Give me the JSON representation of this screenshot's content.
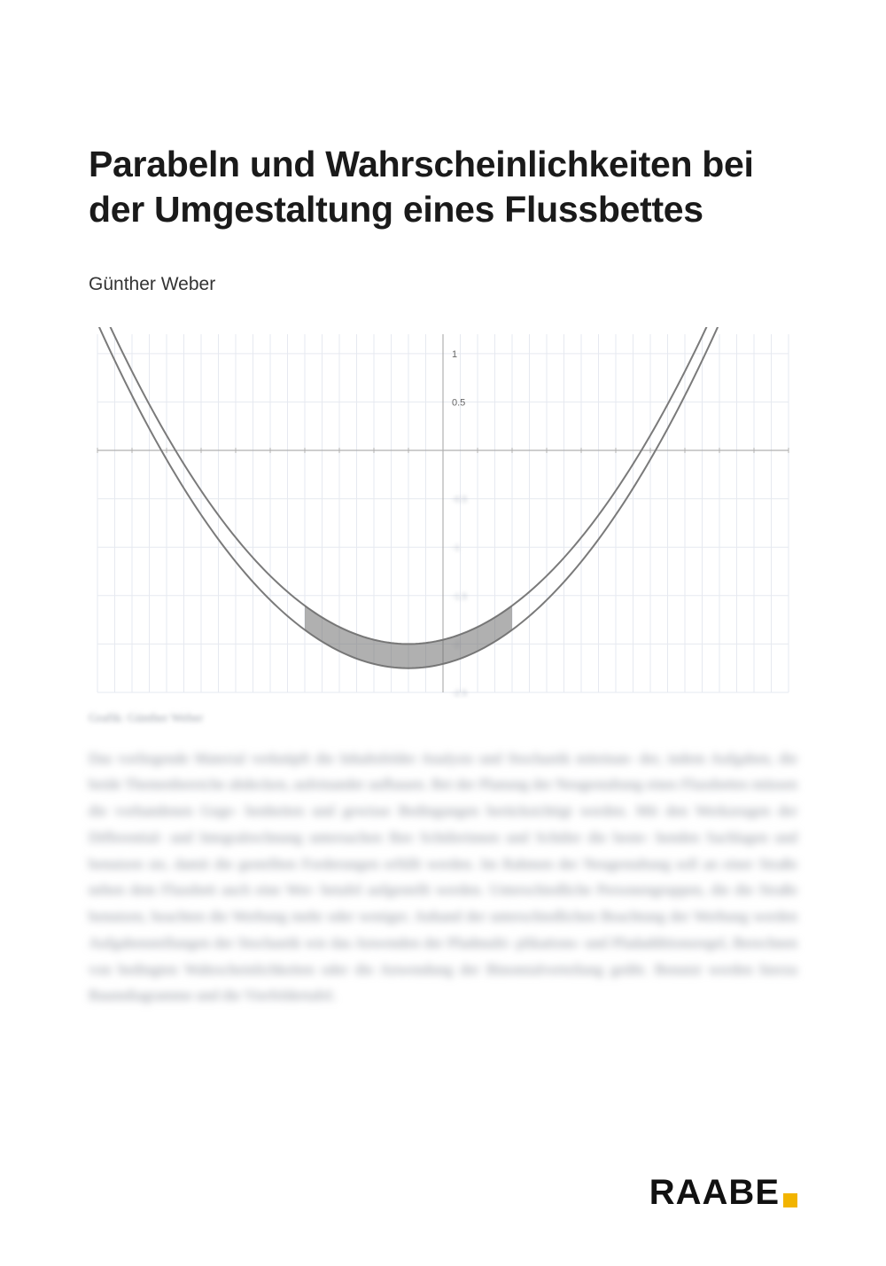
{
  "title": "Parabeln und Wahrscheinlichkeiten bei der Umgestaltung eines Flussbettes",
  "author": "Günther Weber",
  "credit": "Grafik: Günther Weber",
  "body_blur": "Das vorliegende Material verknüpft die Inhaltsfelder Analysis und Stochastik miteinan- der, indem Aufgaben, die beide Themenbereiche abdecken, aufeinander aufbauen.\nBei der Planung der Neugestaltung eines Flussbettes müssen die vorhandenen Gege- benheiten und gewisse Bedingungen berücksichtigt werden. Mit den Werkzeugen der Differential- und Integralrechnung untersuchen Ihre Schülerinnen und Schüler die beste- henden Sachlagen und benutzen sie, damit die gestellten Forderungen erfüllt werden.\nIm Rahmen der Neugestaltung soll an einer Straße neben dem Flussbett auch eine Wer- betafel aufgestellt werden. Unterschiedliche Personengruppen, die die Straße benutzen, beachten die Werbung mehr oder weniger. Anhand der unterschiedlichen Beachtung der Werbung werden Aufgabenstellungen der Stochastik wie das Anwenden der Pfadmulti- plikations- und Pfadadditionsregel, Berechnen von bedingten Wahrscheinlichkeiten oder die Anwendung der Binomialverteilung geübt. Benutzt werden hierzu Baumdiagramme und die Vierfeldertafel.",
  "brand": "RAABE",
  "chart": {
    "type": "line",
    "background_color": "#ffffff",
    "grid_color": "#e6e9f0",
    "axis_color": "#b0b0b0",
    "curve_outer_color": "#7a7a7a",
    "curve_inner_color": "#7a7a7a",
    "curve_width_outer": 2,
    "curve_width_inner": 2,
    "band_color": "#707070",
    "band_opacity": 0.55,
    "x_axis": {
      "min": -10,
      "max": 10,
      "tick_step": 1,
      "minor_step": 0.5
    },
    "y_axis": {
      "min": -2.5,
      "max": 1.2,
      "tick_labels_pos": [
        1,
        0.5
      ],
      "tick_labels_neg": [
        -0.5,
        -1,
        -1.5,
        -2,
        -2.5
      ]
    },
    "y_label_pos": {
      "one": "1",
      "half": "0.5"
    },
    "parabola_outer": {
      "vertex_x": -1.0,
      "vertex_y": -2.25,
      "a": 0.044
    },
    "parabola_inner": {
      "vertex_x": -1.0,
      "vertex_y": -2.0,
      "a": 0.044
    },
    "band": {
      "x_from": -4.0,
      "x_to": 2.0
    },
    "label_fontsize": 11,
    "label_color": "#666666"
  }
}
